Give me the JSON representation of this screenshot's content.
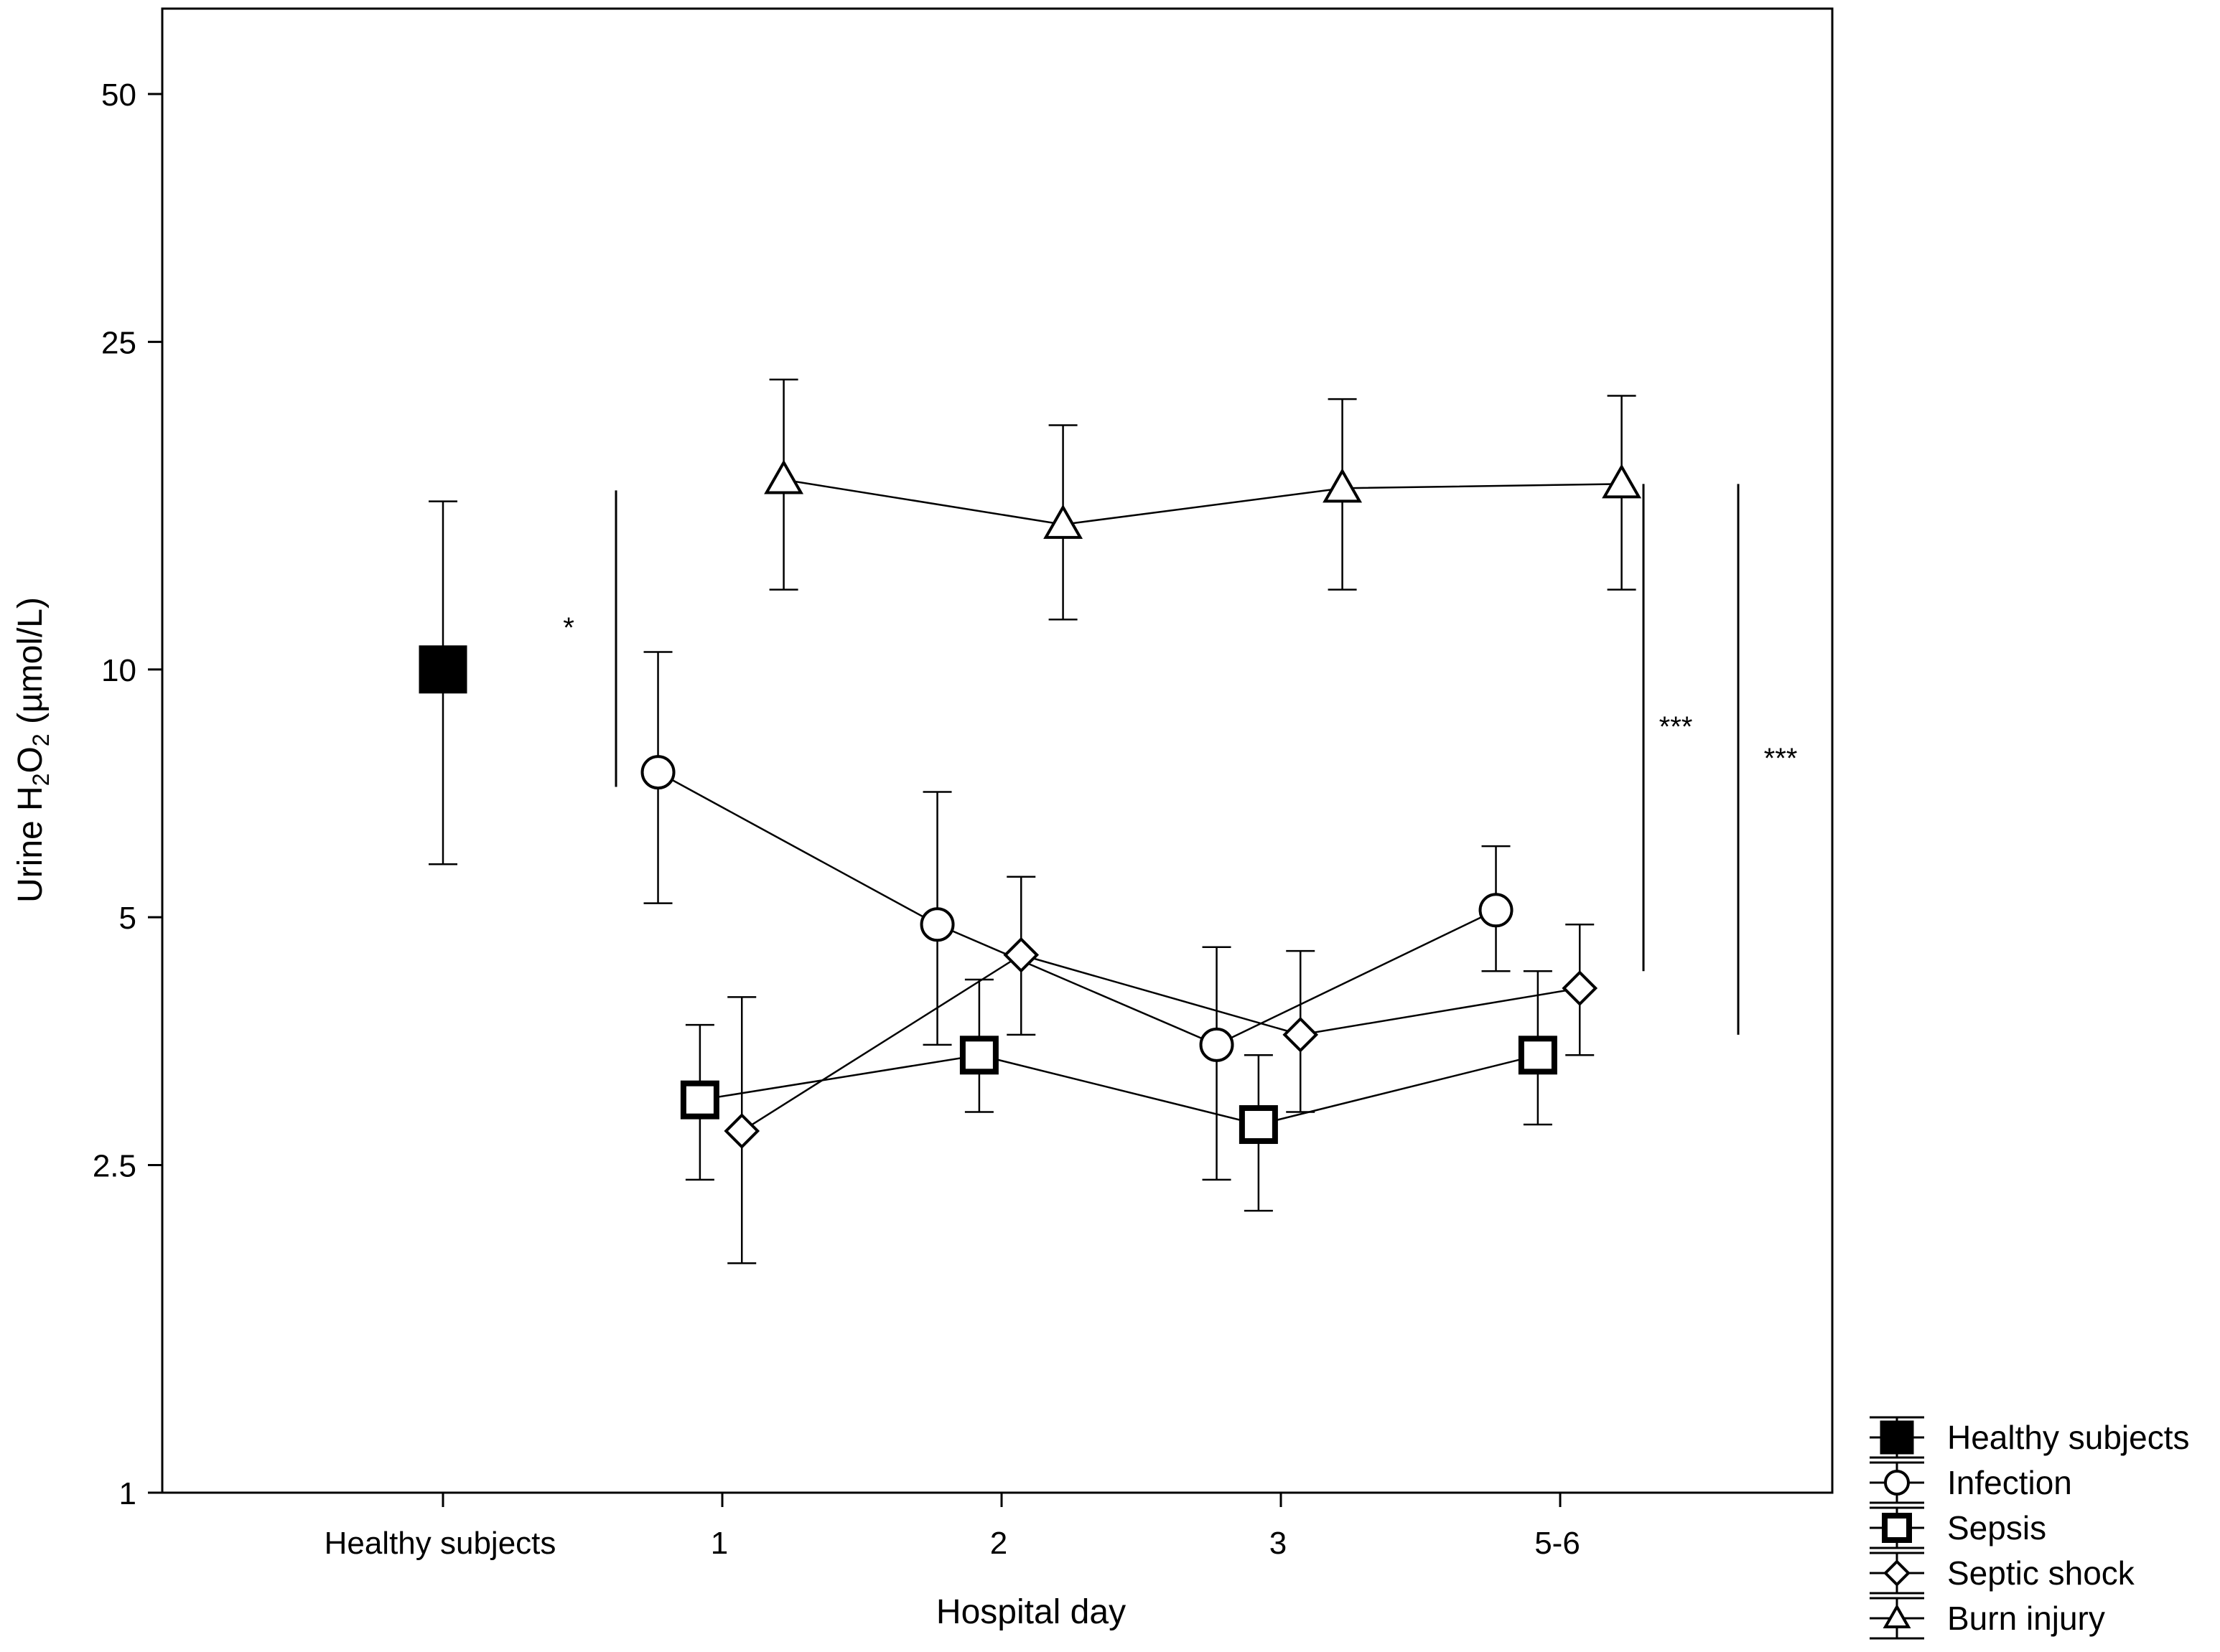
{
  "chart_data": {
    "type": "line",
    "title": "",
    "xlabel": "Hospital day",
    "ylabel": {
      "prefix": "Urine H",
      "sub1": "2",
      "mid": "O",
      "sub2": "2",
      "suffix": " (µmol/L)"
    },
    "y_scale": "log",
    "ylim": [
      1,
      70
    ],
    "y_ticks": [
      1,
      2.5,
      5,
      10,
      25,
      50
    ],
    "y_tick_labels": [
      "1",
      "2.5",
      "5",
      "10",
      "25",
      "50"
    ],
    "categories": [
      "Healthy subjects",
      "1",
      "2",
      "3",
      "5-6"
    ],
    "series": [
      {
        "name": "Healthy subjects",
        "marker": "filled-square",
        "points": [
          {
            "x": 0,
            "offset": 0,
            "y": 10.0,
            "lo": 5.8,
            "hi": 16.0
          }
        ]
      },
      {
        "name": "Infection",
        "marker": "circle",
        "points": [
          {
            "x": 1,
            "offset": -0.23,
            "y": 7.5,
            "lo": 5.2,
            "hi": 10.5
          },
          {
            "x": 2,
            "offset": -0.23,
            "y": 4.9,
            "lo": 3.5,
            "hi": 7.1
          },
          {
            "x": 3,
            "offset": -0.23,
            "y": 3.5,
            "lo": 2.4,
            "hi": 4.6
          },
          {
            "x": 4,
            "offset": -0.23,
            "y": 5.1,
            "lo": 4.3,
            "hi": 6.1
          }
        ]
      },
      {
        "name": "Sepsis",
        "marker": "square",
        "points": [
          {
            "x": 1,
            "offset": -0.08,
            "y": 3.0,
            "lo": 2.4,
            "hi": 3.7
          },
          {
            "x": 2,
            "offset": -0.08,
            "y": 3.4,
            "lo": 2.9,
            "hi": 4.2
          },
          {
            "x": 3,
            "offset": -0.08,
            "y": 2.8,
            "lo": 2.2,
            "hi": 3.4
          },
          {
            "x": 4,
            "offset": -0.08,
            "y": 3.4,
            "lo": 2.8,
            "hi": 4.3
          }
        ]
      },
      {
        "name": "Septic shock",
        "marker": "diamond",
        "points": [
          {
            "x": 1,
            "offset": 0.07,
            "y": 2.75,
            "lo": 1.9,
            "hi": 4.0
          },
          {
            "x": 2,
            "offset": 0.07,
            "y": 4.5,
            "lo": 3.6,
            "hi": 5.6
          },
          {
            "x": 3,
            "offset": 0.07,
            "y": 3.6,
            "lo": 2.9,
            "hi": 4.55
          },
          {
            "x": 4,
            "offset": 0.07,
            "y": 4.1,
            "lo": 3.4,
            "hi": 4.9
          }
        ]
      },
      {
        "name": "Burn injury",
        "marker": "triangle",
        "points": [
          {
            "x": 1,
            "offset": 0.22,
            "y": 17.0,
            "lo": 12.5,
            "hi": 22.5
          },
          {
            "x": 2,
            "offset": 0.22,
            "y": 15.0,
            "lo": 11.5,
            "hi": 19.8
          },
          {
            "x": 3,
            "offset": 0.22,
            "y": 16.6,
            "lo": 12.5,
            "hi": 21.3
          },
          {
            "x": 4,
            "offset": 0.22,
            "y": 16.8,
            "lo": 12.5,
            "hi": 21.5
          }
        ]
      }
    ],
    "significance": [
      {
        "label": "*",
        "y_top": 16.5,
        "y_bottom": 7.2,
        "position": "between healthy subjects and day 1"
      },
      {
        "label": "***",
        "y_top": 16.8,
        "y_bottom": 4.3,
        "position": "right of day 5-6"
      },
      {
        "label": "***",
        "y_top": 16.8,
        "y_bottom": 3.6,
        "position": "far right"
      }
    ],
    "legend": {
      "placement": "bottom-right outside",
      "entries": [
        "Healthy subjects",
        "Infection",
        "Sepsis",
        "Septic shock",
        "Burn injury"
      ]
    }
  }
}
